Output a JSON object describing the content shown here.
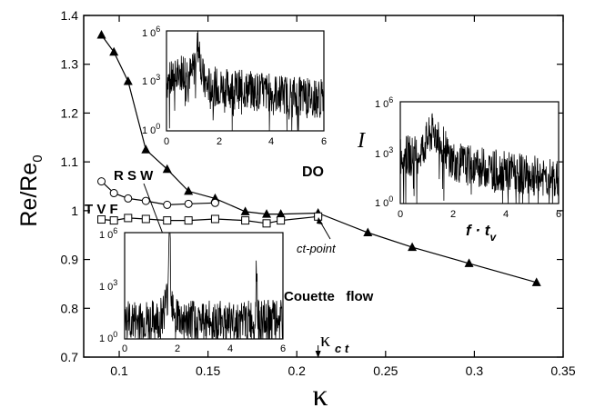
{
  "chart_data": [
    {
      "id": "main",
      "type": "line",
      "xlabel": "κ",
      "ylabel": "Re/Re0",
      "ylabel_parts": [
        "Re/Re",
        "0"
      ],
      "xlim": [
        0.08,
        0.35
      ],
      "ylim": [
        0.7,
        1.4
      ],
      "x_ticks": [
        0.1,
        0.15,
        0.2,
        0.25,
        0.3,
        0.35
      ],
      "x_tick_labels": [
        "0.1",
        "0.15",
        "0.2",
        "0.25",
        "0.3",
        "0.35"
      ],
      "y_ticks": [
        0.7,
        0.8,
        0.9,
        1.0,
        1.1,
        1.2,
        1.3,
        1.4
      ],
      "y_tick_labels": [
        "0.7",
        "0.8",
        "0.9",
        "1",
        "1.1",
        "1.2",
        "1.3",
        "1.4"
      ],
      "grid": false,
      "series": [
        {
          "marker": "triangle",
          "points": [
            [
              0.09,
              1.36
            ],
            [
              0.097,
              1.325
            ],
            [
              0.105,
              1.265
            ],
            [
              0.115,
              1.125
            ],
            [
              0.127,
              1.085
            ],
            [
              0.139,
              1.04
            ],
            [
              0.154,
              1.025
            ],
            [
              0.171,
              0.998
            ],
            [
              0.183,
              0.993
            ],
            [
              0.191,
              0.993
            ],
            [
              0.212,
              0.995
            ],
            [
              0.24,
              0.955
            ],
            [
              0.265,
              0.925
            ],
            [
              0.297,
              0.892
            ],
            [
              0.335,
              0.853
            ]
          ]
        },
        {
          "marker": "circle",
          "points": [
            [
              0.09,
              1.06
            ],
            [
              0.097,
              1.036
            ],
            [
              0.105,
              1.025
            ],
            [
              0.115,
              1.02
            ],
            [
              0.127,
              1.012
            ],
            [
              0.139,
              1.014
            ],
            [
              0.154,
              1.016
            ]
          ]
        },
        {
          "marker": "square",
          "points": [
            [
              0.09,
              0.982
            ],
            [
              0.097,
              0.98
            ],
            [
              0.105,
              0.985
            ],
            [
              0.115,
              0.983
            ],
            [
              0.127,
              0.98
            ],
            [
              0.139,
              0.98
            ],
            [
              0.154,
              0.983
            ],
            [
              0.171,
              0.98
            ],
            [
              0.183,
              0.974
            ],
            [
              0.191,
              0.98
            ],
            [
              0.212,
              0.988
            ]
          ]
        }
      ],
      "annotations": {
        "rsw": "R S W",
        "tvf": "T V F",
        "do": "DO",
        "couette": "Couette   flow",
        "ct_point": "ct-point",
        "kappa_ct_symbol": "κ",
        "kappa_ct_sub": "c t",
        "kappa_ct_x": 0.212
      }
    },
    {
      "id": "inset-top",
      "type": "line",
      "scale_y": "log",
      "xlim": [
        0,
        6
      ],
      "x_tick_labels": [
        "0",
        "2",
        "4",
        "6"
      ],
      "y_tick_labels": [
        "1 0",
        "1 0",
        "1 0"
      ],
      "y_tick_exponents": [
        "0",
        "3",
        "6"
      ],
      "description_peak_x": 1.2
    },
    {
      "id": "inset-right",
      "type": "line",
      "scale_y": "log",
      "xlim": [
        0,
        6
      ],
      "x_tick_labels": [
        "0",
        "2",
        "4",
        "6"
      ],
      "y_tick_labels": [
        "1 0",
        "1 0",
        "1 0"
      ],
      "y_tick_exponents": [
        "0",
        "3",
        "6"
      ],
      "xlabel_parts": [
        "f · t",
        "v"
      ],
      "ylabel": "I",
      "description_peak_x": 1.3
    },
    {
      "id": "inset-bottom",
      "type": "line",
      "scale_y": "log",
      "xlim": [
        0,
        6
      ],
      "x_tick_labels": [
        "0",
        "2",
        "4",
        "6"
      ],
      "y_tick_labels": [
        "1 0",
        "1 0",
        "1 0"
      ],
      "y_tick_exponents": [
        "0",
        "3",
        "6"
      ],
      "description_peak_x": [
        1.7,
        5.0
      ]
    }
  ]
}
